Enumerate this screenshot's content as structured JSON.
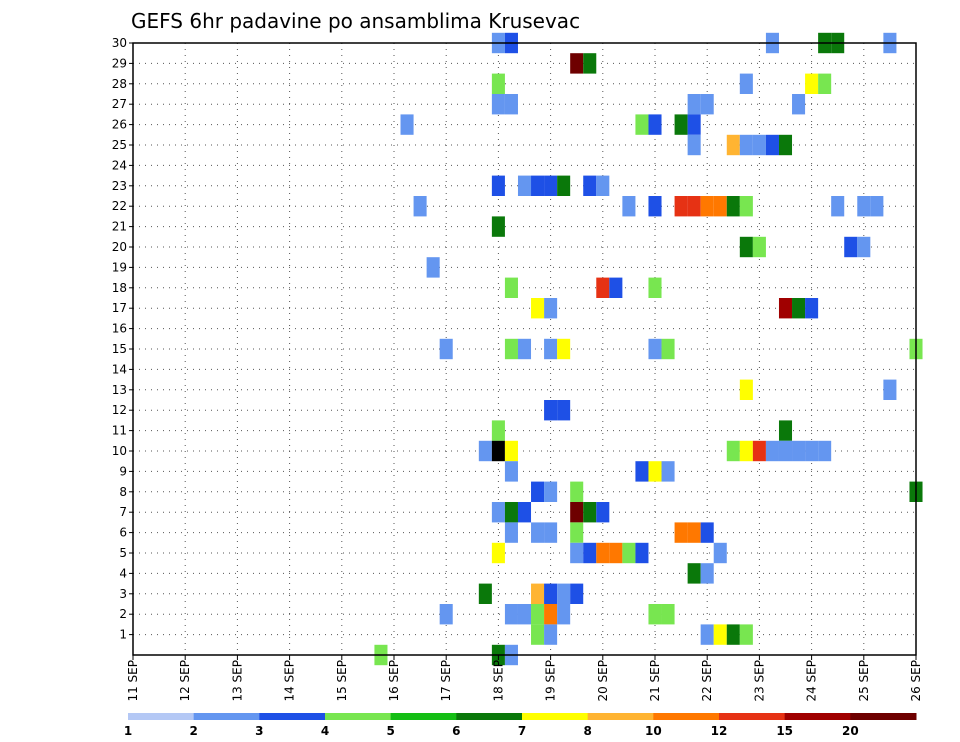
{
  "chart_data": {
    "type": "heatmap",
    "title": "GEFS 6hr padavine po ansamblima Krusevac",
    "xlabel": "",
    "ylabel": "",
    "x_tick_labels": [
      "11 SEP",
      "12 SEP",
      "13 SEP",
      "14 SEP",
      "15 SEP",
      "16 SEP",
      "17 SEP",
      "18 SEP",
      "19 SEP",
      "20 SEP",
      "21 SEP",
      "22 SEP",
      "23 SEP",
      "24 SEP",
      "25 SEP",
      "26 SEP"
    ],
    "xlim": [
      11,
      26
    ],
    "y_tick_labels": [
      "1",
      "2",
      "3",
      "4",
      "5",
      "6",
      "7",
      "8",
      "9",
      "10",
      "11",
      "12",
      "13",
      "14",
      "15",
      "16",
      "17",
      "18",
      "19",
      "20",
      "21",
      "22",
      "23",
      "24",
      "25",
      "26",
      "27",
      "28",
      "29",
      "30"
    ],
    "ylim": [
      0,
      30
    ],
    "grid": true,
    "colorbar": {
      "labels": [
        "1",
        "2",
        "3",
        "4",
        "5",
        "6",
        "7",
        "8",
        "10",
        "12",
        "15",
        "20"
      ],
      "colors": [
        "#b4c8f5",
        "#6496f0",
        "#1e50e6",
        "#78e650",
        "#14be14",
        "#0a780a",
        "#ffff00",
        "#ffb432",
        "#ff7800",
        "#e63214",
        "#a00000",
        "#6e0000"
      ]
    },
    "cells": [
      [
        30,
        18,
        1
      ],
      [
        30,
        18.25,
        2
      ],
      [
        30,
        24.25,
        5
      ],
      [
        30,
        24.5,
        5
      ],
      [
        30,
        23.25,
        1
      ],
      [
        30,
        25.5,
        1
      ],
      [
        29,
        19.5,
        11
      ],
      [
        29,
        19.75,
        5
      ],
      [
        28,
        18,
        3
      ],
      [
        28,
        22.75,
        1
      ],
      [
        28,
        24,
        6
      ],
      [
        28,
        24.25,
        3
      ],
      [
        27,
        18,
        1
      ],
      [
        27,
        18.25,
        1
      ],
      [
        27,
        21.75,
        1
      ],
      [
        27,
        22,
        1
      ],
      [
        27,
        23.75,
        1
      ],
      [
        26,
        16.25,
        1
      ],
      [
        26,
        20.75,
        3
      ],
      [
        26,
        21,
        2
      ],
      [
        26,
        21.5,
        5
      ],
      [
        26,
        21.75,
        2
      ],
      [
        25,
        21.75,
        1
      ],
      [
        25,
        22.5,
        7
      ],
      [
        25,
        22.75,
        1
      ],
      [
        25,
        23,
        1
      ],
      [
        25,
        23.25,
        2
      ],
      [
        25,
        23.5,
        5
      ],
      [
        23,
        18,
        2
      ],
      [
        23,
        18.5,
        1
      ],
      [
        23,
        18.75,
        2
      ],
      [
        23,
        19,
        2
      ],
      [
        23,
        19.25,
        5
      ],
      [
        23,
        19.75,
        2
      ],
      [
        23,
        20,
        1
      ],
      [
        22,
        16.5,
        1
      ],
      [
        22,
        20.5,
        1
      ],
      [
        22,
        21,
        2
      ],
      [
        22,
        21.5,
        9
      ],
      [
        22,
        21.75,
        9
      ],
      [
        22,
        22,
        8
      ],
      [
        22,
        22.25,
        8
      ],
      [
        22,
        22.5,
        5
      ],
      [
        22,
        22.75,
        3
      ],
      [
        22,
        24.5,
        1
      ],
      [
        22,
        25,
        1
      ],
      [
        22,
        25.25,
        1
      ],
      [
        21,
        18,
        5
      ],
      [
        20,
        22.75,
        5
      ],
      [
        20,
        23,
        3
      ],
      [
        20,
        24.75,
        2
      ],
      [
        20,
        25,
        1
      ],
      [
        19,
        16.75,
        1
      ],
      [
        18,
        18.25,
        3
      ],
      [
        18,
        20,
        9
      ],
      [
        18,
        20.25,
        2
      ],
      [
        18,
        21,
        3
      ],
      [
        17,
        19,
        1
      ],
      [
        17,
        18.75,
        6
      ],
      [
        17,
        23.5,
        10
      ],
      [
        17,
        23.75,
        5
      ],
      [
        17,
        24,
        2
      ],
      [
        15,
        17,
        1
      ],
      [
        15,
        18.25,
        3
      ],
      [
        15,
        18.5,
        1
      ],
      [
        15,
        19,
        1
      ],
      [
        15,
        19.25,
        6
      ],
      [
        15,
        21,
        1
      ],
      [
        15,
        21.25,
        3
      ],
      [
        15,
        26,
        3
      ],
      [
        13,
        22.75,
        6
      ],
      [
        13,
        25.5,
        1
      ],
      [
        12,
        19,
        2
      ],
      [
        12,
        19.25,
        2
      ],
      [
        11,
        18,
        3
      ],
      [
        11,
        23.5,
        5
      ],
      [
        10,
        17.75,
        1
      ],
      [
        10,
        18,
        12
      ],
      [
        10,
        18.25,
        6
      ],
      [
        10,
        22.5,
        3
      ],
      [
        10,
        22.75,
        6
      ],
      [
        10,
        23,
        9
      ],
      [
        10,
        23.25,
        1
      ],
      [
        10,
        23.5,
        1
      ],
      [
        10,
        23.75,
        1
      ],
      [
        10,
        24,
        1
      ],
      [
        10,
        24.25,
        1
      ],
      [
        9,
        18.25,
        1
      ],
      [
        9,
        20.75,
        2
      ],
      [
        9,
        21,
        6
      ],
      [
        9,
        21.25,
        1
      ],
      [
        8,
        18.75,
        2
      ],
      [
        8,
        19,
        1
      ],
      [
        8,
        19.5,
        3
      ],
      [
        8,
        26,
        5
      ],
      [
        7,
        18,
        1
      ],
      [
        7,
        18.25,
        5
      ],
      [
        7,
        18.5,
        2
      ],
      [
        7,
        19.5,
        11
      ],
      [
        7,
        19.75,
        5
      ],
      [
        7,
        20,
        2
      ],
      [
        6,
        18.25,
        1
      ],
      [
        6,
        18.75,
        1
      ],
      [
        6,
        19,
        1
      ],
      [
        6,
        19.5,
        3
      ],
      [
        6,
        21.5,
        8
      ],
      [
        6,
        21.75,
        8
      ],
      [
        6,
        22,
        2
      ],
      [
        5,
        18,
        6
      ],
      [
        5,
        19.5,
        1
      ],
      [
        5,
        19.75,
        2
      ],
      [
        5,
        20,
        8
      ],
      [
        5,
        20.25,
        8
      ],
      [
        5,
        20.5,
        3
      ],
      [
        5,
        20.75,
        2
      ],
      [
        5,
        22.25,
        1
      ],
      [
        4,
        21.75,
        5
      ],
      [
        4,
        22,
        1
      ],
      [
        3,
        17.75,
        5
      ],
      [
        3,
        18.75,
        7
      ],
      [
        3,
        19,
        2
      ],
      [
        3,
        19.25,
        1
      ],
      [
        3,
        19.5,
        2
      ],
      [
        2,
        17,
        1
      ],
      [
        2,
        18.25,
        1
      ],
      [
        2,
        18.5,
        1
      ],
      [
        2,
        18.75,
        3
      ],
      [
        2,
        19,
        8
      ],
      [
        2,
        19.25,
        1
      ],
      [
        2,
        21,
        3
      ],
      [
        2,
        21.25,
        3
      ],
      [
        1,
        18.75,
        3
      ],
      [
        1,
        19,
        1
      ],
      [
        1,
        22,
        1
      ],
      [
        1,
        22.25,
        6
      ],
      [
        1,
        22.5,
        5
      ],
      [
        1,
        22.75,
        3
      ],
      [
        0,
        15.75,
        3
      ],
      [
        0,
        18,
        5
      ],
      [
        0,
        18.25,
        1
      ]
    ]
  }
}
